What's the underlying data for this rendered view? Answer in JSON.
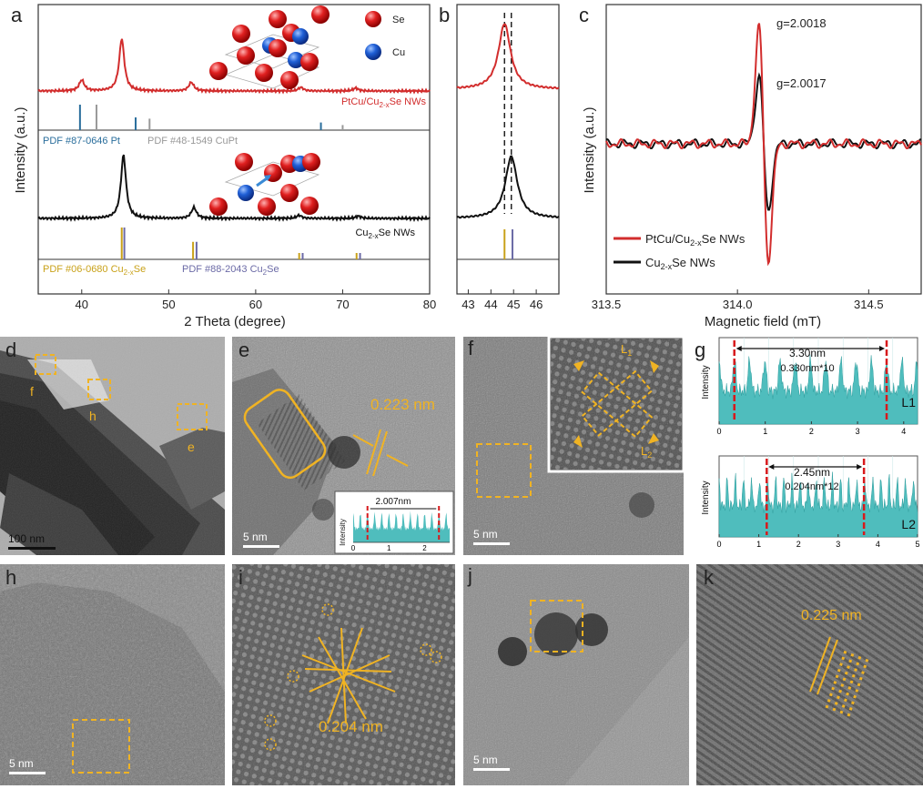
{
  "colors": {
    "red": "#d22d2d",
    "black": "#111111",
    "pt_blue": "#2a6e9c",
    "cupt_gray": "#999999",
    "cuse_yellow": "#c9a21a",
    "cu2se_purple": "#6b6aa6",
    "teal": "#4fbdbd",
    "orange": "#f0b323",
    "dash_red": "#d7191c"
  },
  "panel_labels": {
    "a": "a",
    "b": "b",
    "c": "c",
    "d": "d",
    "e": "e",
    "f": "f",
    "g": "g",
    "h": "h",
    "i": "i",
    "j": "j",
    "k": "k"
  },
  "legend_atoms": {
    "se": "Se",
    "cu": "Cu"
  },
  "chart_data": [
    {
      "id": "a",
      "type": "line",
      "xlabel": "2 Theta (degree)",
      "ylabel": "Intensity (a.u.)",
      "xlim": [
        35,
        80
      ],
      "xticks": [
        "40",
        "50",
        "60",
        "70",
        "80"
      ],
      "series": [
        {
          "name": "PtCu/Cu2-xSe NWs",
          "color": "red",
          "peaks": [
            {
              "x": 40.0,
              "h": 0.15
            },
            {
              "x": 44.6,
              "h": 0.72
            },
            {
              "x": 52.6,
              "h": 0.12
            },
            {
              "x": 65.2,
              "h": 0.05
            },
            {
              "x": 71.5,
              "h": 0.04
            }
          ]
        },
        {
          "name": "Cu2-xSe NWs",
          "color": "black",
          "peaks": [
            {
              "x": 44.8,
              "h": 0.82
            },
            {
              "x": 52.9,
              "h": 0.14
            },
            {
              "x": 65.0,
              "h": 0.04
            },
            {
              "x": 71.8,
              "h": 0.03
            }
          ]
        }
      ],
      "labels": {
        "top_series": "PtCu/Cu",
        "top_sub": "2-x",
        "top_end": "Se NWs",
        "bot_series": "Cu",
        "bot_sub": "2-x",
        "bot_end": "Se NWs"
      },
      "references": [
        {
          "name": "PDF #87-0646 Pt",
          "color": "pt_blue",
          "lines": [
            [
              39.8,
              1.0
            ],
            [
              46.2,
              0.5
            ],
            [
              67.5,
              0.3
            ],
            [
              81,
              0
            ]
          ]
        },
        {
          "name": "PDF #48-1549 CuPt",
          "color": "cupt_gray",
          "lines": [
            [
              41.7,
              1.0
            ],
            [
              47.8,
              0.45
            ],
            [
              70.0,
              0.2
            ]
          ]
        },
        {
          "name_pre": "PDF #06-0680 Cu",
          "name_sub": "2-x",
          "name_end": "Se",
          "color": "cuse_yellow",
          "lines": [
            [
              44.6,
              1.0
            ],
            [
              52.8,
              0.55
            ],
            [
              65.0,
              0.2
            ],
            [
              71.6,
              0.2
            ]
          ]
        },
        {
          "name_pre": "PDF #88-2043 Cu",
          "name_sub": "2",
          "name_end": "Se",
          "color": "cu2se_purple",
          "lines": [
            [
              44.9,
              1.0
            ],
            [
              53.2,
              0.55
            ],
            [
              65.4,
              0.2
            ],
            [
              72.0,
              0.2
            ]
          ]
        }
      ]
    },
    {
      "id": "b",
      "type": "line",
      "xlim": [
        42.5,
        47
      ],
      "xticks": [
        "43",
        "44",
        "45",
        "46"
      ],
      "dashed_lines_x": [
        44.6,
        44.9
      ],
      "series": [
        {
          "name": "PtCu/Cu2-xSe NWs",
          "color": "red",
          "center": 44.6,
          "width": 0.32
        },
        {
          "name": "Cu2-xSe NWs",
          "color": "black",
          "center": 44.9,
          "width": 0.32
        }
      ],
      "references": [
        {
          "color": "cuse_yellow",
          "x": 44.6
        },
        {
          "color": "cu2se_purple",
          "x": 44.95
        }
      ]
    },
    {
      "id": "c",
      "type": "line",
      "xlabel": "Magnetic field (mT)",
      "ylabel": "Intensity (a.u.)",
      "xlim": [
        313.5,
        314.7
      ],
      "xticks": [
        "313.5",
        "314.0",
        "314.5"
      ],
      "annotations": [
        "g=2.0018",
        "g=2.0017"
      ],
      "series": [
        {
          "name_pre": "PtCu/Cu",
          "name_sub": "2-x",
          "name_end": "Se NWs",
          "color": "red",
          "amplitude": 1.0,
          "center": 314.1
        },
        {
          "name_pre": "Cu",
          "name_sub": "2-x",
          "name_end": "Se NWs",
          "color": "black",
          "amplitude": 0.58,
          "center": 314.1
        }
      ]
    },
    {
      "id": "g",
      "type": "area",
      "subplots": [
        {
          "label": "L1",
          "ylabel": "Intensity",
          "xlim": [
            0,
            4.3
          ],
          "xticks": [
            "0",
            "1",
            "2",
            "3",
            "4"
          ],
          "period": 0.33,
          "markers": [
            0.33,
            3.63
          ],
          "annot1": "3.30nm",
          "annot2": "0.330nm*10"
        },
        {
          "label": "L2",
          "ylabel": "Intensity",
          "xlim": [
            0,
            5
          ],
          "xticks": [
            "0",
            "1",
            "2",
            "3",
            "4",
            "5"
          ],
          "period": 0.204,
          "markers": [
            1.2,
            3.65
          ],
          "annot1": "2.45nm",
          "annot2": "0.204nm*12"
        }
      ]
    },
    {
      "id": "e-inset",
      "type": "area",
      "ylabel": "Intensity",
      "xlim": [
        0,
        2.7
      ],
      "xticks": [
        "0",
        "1",
        "2"
      ],
      "period": 0.2,
      "markers": [
        0.4,
        2.4
      ],
      "annot": "2.007nm"
    }
  ],
  "micrographs": {
    "d": {
      "scale": "100 nm",
      "markers": [
        "f",
        "h",
        "e"
      ]
    },
    "e": {
      "scale": "5 nm",
      "spacing": "0.223 nm"
    },
    "f": {
      "scale": "5 nm",
      "lines": [
        "L1",
        "L2"
      ],
      "line_sub": [
        "1",
        "2"
      ],
      "line_base": "L"
    },
    "h": {
      "scale": "5 nm"
    },
    "i": {
      "spacing": "0.204 nm"
    },
    "j": {
      "scale": "5 nm"
    },
    "k": {
      "spacing": "0.225 nm"
    }
  }
}
